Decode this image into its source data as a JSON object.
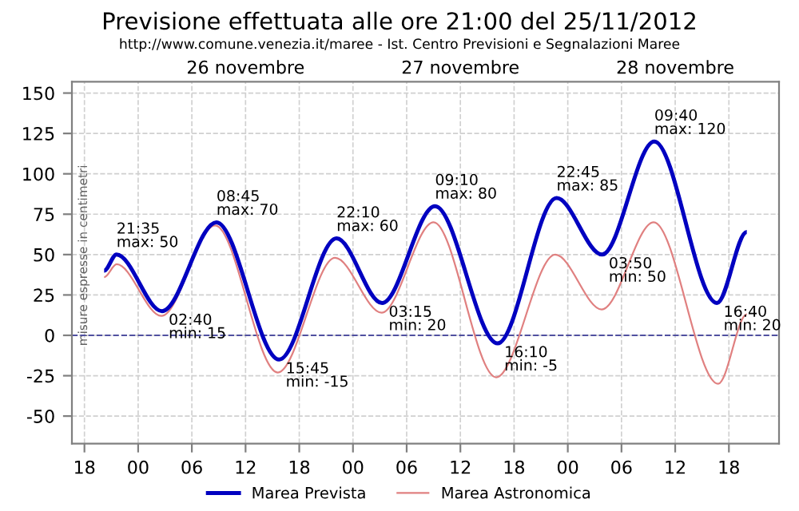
{
  "chart_data": {
    "type": "line",
    "title": "Previsione effettuata alle ore 21:00 del 25/11/2012",
    "subtitle": "http://www.comune.venezia.it/maree - Ist. Centro Previsioni e Segnalazioni Maree",
    "ylabel": "misure espresse in centimetri",
    "series": [
      {
        "name": "Marea Prevista",
        "color": "#0000c0",
        "x": [
          "2012-11-25T20:12",
          "2012-11-25T21:35",
          "2012-11-26T02:40",
          "2012-11-26T08:45",
          "2012-11-26T15:45",
          "2012-11-26T22:10",
          "2012-11-27T03:15",
          "2012-11-27T09:10",
          "2012-11-27T16:10",
          "2012-11-27T22:45",
          "2012-11-28T03:50",
          "2012-11-28T09:40",
          "2012-11-28T16:40",
          "2012-11-28T20:00"
        ],
        "values": [
          40,
          50,
          15,
          70,
          -15,
          60,
          20,
          80,
          -5,
          85,
          50,
          120,
          20,
          64
        ]
      },
      {
        "name": "Marea Astronomica",
        "color": "#e08080",
        "x": [
          "2012-11-25T20:12",
          "2012-11-25T21:36",
          "2012-11-26T02:36",
          "2012-11-26T08:36",
          "2012-11-26T15:36",
          "2012-11-26T22:00",
          "2012-11-27T03:12",
          "2012-11-27T09:00",
          "2012-11-27T16:00",
          "2012-11-27T22:36",
          "2012-11-28T03:48",
          "2012-11-28T09:36",
          "2012-11-28T16:48",
          "2012-11-28T20:00"
        ],
        "values": [
          36,
          44,
          12,
          68,
          -23,
          48,
          14,
          70,
          -26,
          50,
          16,
          70,
          -30,
          13
        ]
      }
    ],
    "annotations": [
      {
        "text": "21:35\nmax: 50",
        "x": "2012-11-25T21:35",
        "y": 50
      },
      {
        "text": "02:40\nmin: 15",
        "x": "2012-11-26T02:40",
        "y": 15
      },
      {
        "text": "08:45\nmax: 70",
        "x": "2012-11-26T08:45",
        "y": 70
      },
      {
        "text": "15:45\nmin: -15",
        "x": "2012-11-26T15:45",
        "y": -15
      },
      {
        "text": "22:10\nmax: 60",
        "x": "2012-11-26T22:10",
        "y": 60
      },
      {
        "text": "03:15\nmin: 20",
        "x": "2012-11-27T03:15",
        "y": 20
      },
      {
        "text": "09:10\nmax: 80",
        "x": "2012-11-27T09:10",
        "y": 80
      },
      {
        "text": "16:10\nmin: -5",
        "x": "2012-11-27T16:10",
        "y": -5
      },
      {
        "text": "22:45\nmax: 85",
        "x": "2012-11-27T22:45",
        "y": 85
      },
      {
        "text": "03:50\nmin: 50",
        "x": "2012-11-28T03:50",
        "y": 50
      },
      {
        "text": "09:40\nmax: 120",
        "x": "2012-11-28T09:40",
        "y": 120
      },
      {
        "text": "16:40\nmin: 20",
        "x": "2012-11-28T16:40",
        "y": 20
      }
    ],
    "xlim": [
      "2012-11-25T16:36",
      "2012-11-28T23:36"
    ],
    "xticks": [
      {
        "value": "2012-11-25T18:00",
        "label": "18"
      },
      {
        "value": "2012-11-26T00:00",
        "label": "00"
      },
      {
        "value": "2012-11-26T06:00",
        "label": "06"
      },
      {
        "value": "2012-11-26T12:00",
        "label": "12"
      },
      {
        "value": "2012-11-26T18:00",
        "label": "18"
      },
      {
        "value": "2012-11-27T00:00",
        "label": "00"
      },
      {
        "value": "2012-11-27T06:00",
        "label": "06"
      },
      {
        "value": "2012-11-27T12:00",
        "label": "12"
      },
      {
        "value": "2012-11-27T18:00",
        "label": "18"
      },
      {
        "value": "2012-11-28T00:00",
        "label": "00"
      },
      {
        "value": "2012-11-28T06:00",
        "label": "06"
      },
      {
        "value": "2012-11-28T12:00",
        "label": "12"
      },
      {
        "value": "2012-11-28T18:00",
        "label": "18"
      }
    ],
    "x2lim": [
      "2012-11-25T16:36",
      "2012-11-28T23:36"
    ],
    "x2ticks": [
      {
        "value": "2012-11-26T12:00",
        "label": "26 novembre"
      },
      {
        "value": "2012-11-27T12:00",
        "label": "27 novembre"
      },
      {
        "value": "2012-11-28T12:00",
        "label": "28 novembre"
      }
    ],
    "ylim": [
      -67,
      157
    ],
    "yticks": [
      -50,
      -25,
      0,
      25,
      50,
      75,
      100,
      125,
      150
    ],
    "ref_lines": [
      {
        "axis": "y",
        "value": 0,
        "color": "#5050a0",
        "line_style": "dashed"
      }
    ],
    "grid": true,
    "legend": "bottom",
    "line_style": "solid",
    "marker": "none"
  }
}
